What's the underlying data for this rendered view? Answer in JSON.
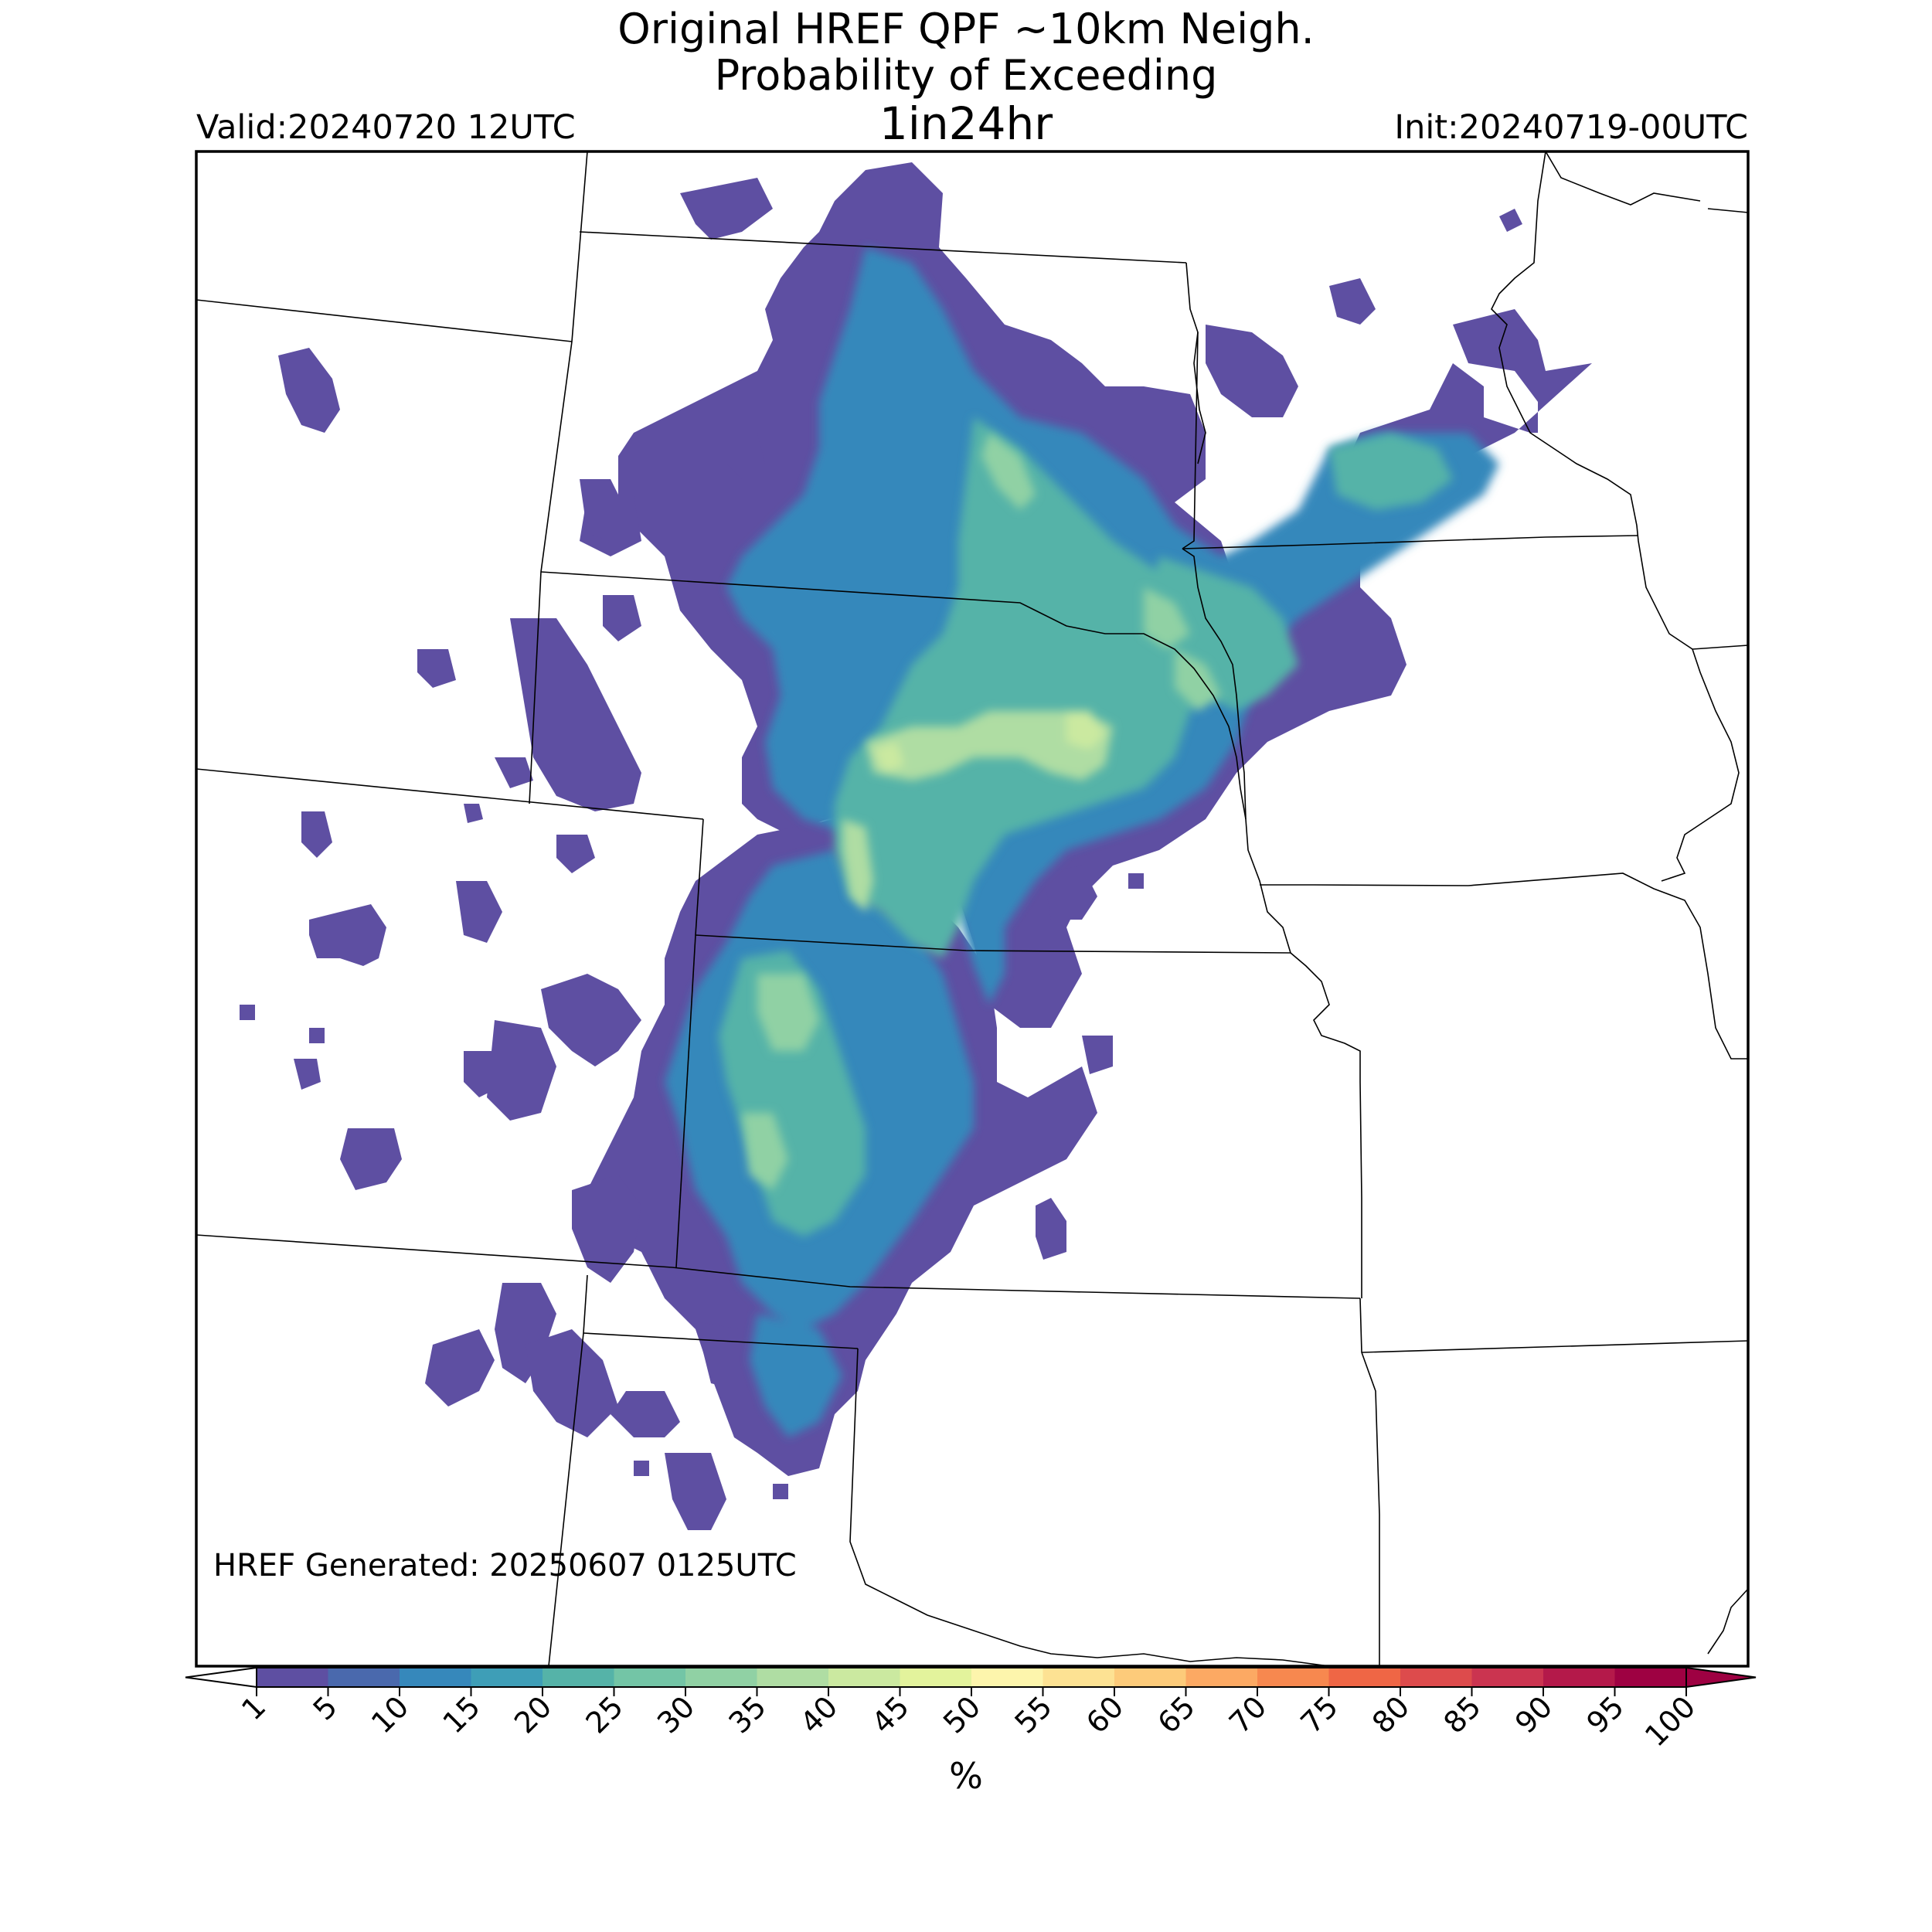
{
  "title": {
    "line1": "Original HREF QPF ~10km Neigh.",
    "line2": "Probability of Exceeding",
    "line3": "1in24hr"
  },
  "valid_label": "Valid:20240720 12UTC",
  "init_label": "Init:20240719-00UTC",
  "generated_label": "HREF Generated: 20250607 0125UTC",
  "colorbar": {
    "units": "%",
    "ticks": [
      "1",
      "5",
      "10",
      "15",
      "20",
      "25",
      "30",
      "35",
      "40",
      "45",
      "50",
      "55",
      "60",
      "65",
      "70",
      "75",
      "80",
      "85",
      "90",
      "95",
      "100"
    ],
    "colors": [
      "#5e4fa2",
      "#4a69ad",
      "#3688bb",
      "#3e9eb7",
      "#55b3a8",
      "#73c5a6",
      "#90d1a4",
      "#afdda3",
      "#cbe9a0",
      "#e3f39c",
      "#fdf5ac",
      "#fde293",
      "#fdcb7a",
      "#fca963",
      "#f7884f",
      "#ef6645",
      "#dd4b4c",
      "#cb3450",
      "#b4194a",
      "#9e0142"
    ]
  },
  "map": {
    "projection_note": "",
    "colors": {
      "background": "#ffffff",
      "border": "#000000",
      "state_lines": "#000000"
    }
  }
}
